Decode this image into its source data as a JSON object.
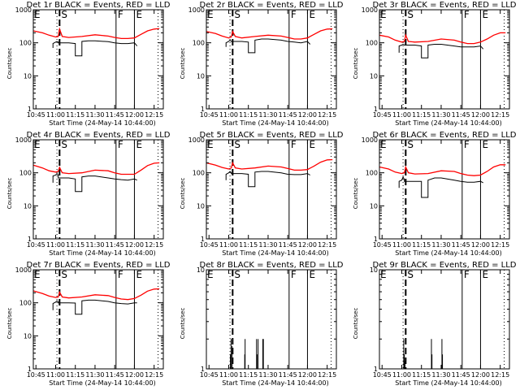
{
  "page": {
    "background": "#ffffff"
  },
  "chart_data": {
    "type": "line",
    "layout": "3x3 grid of panels",
    "colors": {
      "events": "#000000",
      "lld": "#ff0000",
      "axes": "#000000"
    },
    "shared": {
      "xlabel": "Start Time (24-May-14 10:44:00)",
      "ylabel": "Counts/sec",
      "x_unit": "minutes since 00:00",
      "xlim": [
        643,
        742
      ],
      "x_ticks": [
        {
          "value": 645,
          "label": "10:45"
        },
        {
          "value": 660,
          "label": "11:00"
        },
        {
          "value": 675,
          "label": "11:15"
        },
        {
          "value": 690,
          "label": "11:30"
        },
        {
          "value": 705,
          "label": "11:45"
        },
        {
          "value": 720,
          "label": "12:00"
        },
        {
          "value": 735,
          "label": "12:15"
        }
      ],
      "yscale": "log",
      "legend": "in title: BLACK = Events, RED = LLD",
      "marker_lines": [
        {
          "x": 661,
          "style": "dotted"
        },
        {
          "x": 663,
          "style": "dashed",
          "label": "S"
        },
        {
          "x": 706,
          "style": "solid",
          "label": "F"
        },
        {
          "x": 720,
          "style": "solid",
          "label": "E"
        },
        {
          "x": 738,
          "style": "dotted"
        }
      ],
      "left_marker_label": "E"
    },
    "panels": [
      {
        "title": "Det 1r BLACK = Events, RED = LLD",
        "ylim": [
          1,
          1000
        ],
        "y_ticks": [
          {
            "value": 1,
            "label": "1"
          },
          {
            "value": 10,
            "label": "10"
          },
          {
            "value": 100,
            "label": "100"
          },
          {
            "value": 1000,
            "label": "1000"
          }
        ],
        "lld": {
          "x": [
            643,
            650,
            655,
            660,
            662,
            663,
            665,
            670,
            680,
            690,
            700,
            705,
            710,
            715,
            720,
            725,
            730,
            735,
            739
          ],
          "y": [
            230,
            200,
            170,
            150,
            155,
            260,
            155,
            145,
            155,
            175,
            160,
            145,
            135,
            135,
            140,
            180,
            230,
            260,
            270
          ]
        },
        "events": {
          "x": [
            658,
            658,
            660,
            661,
            662,
            662,
            665,
            670,
            675,
            675,
            680,
            680,
            685,
            690,
            700,
            705,
            710,
            715,
            720,
            722
          ],
          "y": [
            70,
            95,
            105,
            110,
            105,
            100,
            100,
            100,
            95,
            40,
            40,
            110,
            115,
            115,
            108,
            100,
            95,
            95,
            100,
            80
          ]
        }
      },
      {
        "title": "Det 2r BLACK = Events, RED = LLD",
        "ylim": [
          1,
          1000
        ],
        "y_ticks": [
          {
            "value": 1,
            "label": "1"
          },
          {
            "value": 10,
            "label": "10"
          },
          {
            "value": 100,
            "label": "100"
          },
          {
            "value": 1000,
            "label": "1000"
          }
        ],
        "lld": {
          "x": [
            643,
            650,
            655,
            660,
            662,
            663,
            665,
            670,
            680,
            690,
            700,
            705,
            710,
            715,
            720,
            725,
            730,
            735,
            739
          ],
          "y": [
            220,
            190,
            160,
            140,
            150,
            220,
            155,
            140,
            155,
            170,
            160,
            145,
            130,
            130,
            140,
            180,
            230,
            260,
            265
          ]
        },
        "events": {
          "x": [
            658,
            658,
            660,
            661,
            662,
            662,
            665,
            670,
            675,
            675,
            680,
            680,
            685,
            690,
            700,
            705,
            710,
            715,
            720,
            722
          ],
          "y": [
            75,
            100,
            110,
            120,
            110,
            110,
            110,
            110,
            105,
            50,
            50,
            120,
            130,
            130,
            120,
            110,
            105,
            100,
            110,
            90
          ]
        }
      },
      {
        "title": "Det 3r BLACK = Events, RED = LLD",
        "ylim": [
          1,
          1000
        ],
        "y_ticks": [
          {
            "value": 1,
            "label": "1"
          },
          {
            "value": 10,
            "label": "10"
          },
          {
            "value": 100,
            "label": "100"
          },
          {
            "value": 1000,
            "label": "1000"
          }
        ],
        "lld": {
          "x": [
            643,
            650,
            655,
            660,
            662,
            663,
            665,
            670,
            680,
            690,
            700,
            705,
            710,
            715,
            720,
            725,
            730,
            735,
            739
          ],
          "y": [
            170,
            150,
            120,
            105,
            110,
            170,
            110,
            105,
            110,
            130,
            120,
            105,
            95,
            95,
            105,
            130,
            170,
            200,
            200
          ]
        },
        "events": {
          "x": [
            658,
            658,
            660,
            661,
            662,
            662,
            665,
            670,
            675,
            675,
            680,
            680,
            685,
            690,
            700,
            705,
            710,
            715,
            720,
            722
          ],
          "y": [
            50,
            80,
            85,
            90,
            85,
            85,
            85,
            85,
            80,
            35,
            35,
            85,
            90,
            90,
            80,
            75,
            75,
            75,
            80,
            65
          ]
        }
      },
      {
        "title": "Det 4r BLACK = Events, RED = LLD",
        "ylim": [
          1,
          1000
        ],
        "y_ticks": [
          {
            "value": 1,
            "label": "1"
          },
          {
            "value": 10,
            "label": "10"
          },
          {
            "value": 100,
            "label": "100"
          },
          {
            "value": 1000,
            "label": "1000"
          }
        ],
        "lld": {
          "x": [
            643,
            650,
            655,
            660,
            662,
            663,
            665,
            670,
            680,
            690,
            700,
            705,
            710,
            715,
            720,
            725,
            730,
            735,
            739
          ],
          "y": [
            170,
            140,
            115,
            105,
            110,
            145,
            100,
            95,
            100,
            120,
            115,
            100,
            90,
            90,
            90,
            120,
            165,
            195,
            200
          ]
        },
        "events": {
          "x": [
            658,
            658,
            660,
            661,
            662,
            662,
            665,
            670,
            675,
            675,
            680,
            680,
            685,
            690,
            700,
            705,
            710,
            715,
            720,
            722
          ],
          "y": [
            50,
            80,
            85,
            95,
            85,
            70,
            70,
            70,
            65,
            27,
            27,
            75,
            80,
            80,
            70,
            65,
            62,
            60,
            65,
            60
          ]
        }
      },
      {
        "title": "Det 5r BLACK = Events, RED = LLD",
        "ylim": [
          1,
          1000
        ],
        "y_ticks": [
          {
            "value": 1,
            "label": "1"
          },
          {
            "value": 10,
            "label": "10"
          },
          {
            "value": 100,
            "label": "100"
          },
          {
            "value": 1000,
            "label": "1000"
          }
        ],
        "lld": {
          "x": [
            643,
            650,
            655,
            660,
            662,
            663,
            665,
            670,
            680,
            690,
            700,
            705,
            710,
            715,
            720,
            725,
            730,
            735,
            739
          ],
          "y": [
            200,
            170,
            145,
            130,
            140,
            200,
            140,
            130,
            140,
            160,
            150,
            135,
            120,
            120,
            125,
            160,
            210,
            245,
            250
          ]
        },
        "events": {
          "x": [
            658,
            658,
            660,
            661,
            662,
            662,
            665,
            670,
            675,
            675,
            680,
            680,
            685,
            690,
            700,
            705,
            710,
            715,
            720,
            722
          ],
          "y": [
            60,
            90,
            100,
            110,
            100,
            95,
            95,
            95,
            90,
            38,
            38,
            105,
            110,
            110,
            100,
            90,
            88,
            88,
            95,
            85
          ]
        }
      },
      {
        "title": "Det 6r BLACK = Events, RED = LLD",
        "ylim": [
          1,
          1000
        ],
        "y_ticks": [
          {
            "value": 1,
            "label": "1"
          },
          {
            "value": 10,
            "label": "10"
          },
          {
            "value": 100,
            "label": "100"
          },
          {
            "value": 1000,
            "label": "1000"
          }
        ],
        "lld": {
          "x": [
            643,
            650,
            655,
            660,
            662,
            663,
            665,
            670,
            680,
            690,
            700,
            705,
            710,
            715,
            720,
            725,
            730,
            735,
            739
          ],
          "y": [
            150,
            130,
            105,
            95,
            100,
            150,
            100,
            92,
            95,
            115,
            110,
            95,
            85,
            82,
            85,
            110,
            150,
            175,
            175
          ]
        },
        "events": {
          "x": [
            658,
            658,
            660,
            661,
            662,
            662,
            665,
            670,
            675,
            675,
            680,
            680,
            685,
            690,
            700,
            705,
            710,
            715,
            720,
            722
          ],
          "y": [
            35,
            55,
            60,
            75,
            62,
            55,
            55,
            55,
            55,
            18,
            18,
            60,
            70,
            70,
            60,
            55,
            52,
            52,
            55,
            50
          ]
        }
      },
      {
        "title": "Det 7r BLACK = Events, RED = LLD",
        "ylim": [
          1,
          1000
        ],
        "y_ticks": [
          {
            "value": 1,
            "label": "1"
          },
          {
            "value": 10,
            "label": "10"
          },
          {
            "value": 100,
            "label": "100"
          },
          {
            "value": 1000,
            "label": "1000"
          }
        ],
        "lld": {
          "x": [
            643,
            650,
            655,
            660,
            662,
            663,
            665,
            670,
            680,
            690,
            700,
            705,
            710,
            715,
            720,
            725,
            730,
            735,
            739
          ],
          "y": [
            230,
            190,
            160,
            145,
            150,
            210,
            150,
            140,
            150,
            175,
            165,
            145,
            130,
            125,
            135,
            170,
            225,
            260,
            265
          ]
        },
        "events": {
          "x": [
            658,
            658,
            660,
            661,
            662,
            662,
            665,
            670,
            675,
            675,
            680,
            680,
            685,
            690,
            700,
            705,
            710,
            715,
            720,
            722
          ],
          "y": [
            60,
            95,
            105,
            115,
            105,
            100,
            100,
            100,
            98,
            45,
            45,
            115,
            120,
            120,
            110,
            100,
            95,
            92,
            100,
            100
          ]
        }
      },
      {
        "title": "Det 8r BLACK = Events, RED = LLD",
        "ylim": [
          1,
          10
        ],
        "y_ticks": [
          {
            "value": 1,
            "label": "1"
          },
          {
            "value": 10,
            "label": "10"
          }
        ],
        "spikes": [
          {
            "x": 661.3,
            "y": 1.4
          },
          {
            "x": 661.8,
            "y": 2
          },
          {
            "x": 662.6,
            "y": 1.7
          },
          {
            "x": 672.5,
            "y": 2
          },
          {
            "x": 672.2,
            "y": 1.4
          },
          {
            "x": 681.2,
            "y": 2
          },
          {
            "x": 681.6,
            "y": 1.4
          },
          {
            "x": 682.4,
            "y": 2
          },
          {
            "x": 686.0,
            "y": 2
          },
          {
            "x": 686.4,
            "y": 2
          }
        ]
      },
      {
        "title": "Det 9r BLACK = Events, RED = LLD",
        "ylim": [
          1,
          10
        ],
        "y_ticks": [
          {
            "value": 1,
            "label": "1"
          },
          {
            "value": 10,
            "label": "10"
          }
        ],
        "spikes": [
          {
            "x": 661.5,
            "y": 2
          },
          {
            "x": 662.0,
            "y": 1.4
          },
          {
            "x": 662.5,
            "y": 1.2
          },
          {
            "x": 682.6,
            "y": 2
          },
          {
            "x": 683.0,
            "y": 1.4
          },
          {
            "x": 690.6,
            "y": 2
          },
          {
            "x": 691.0,
            "y": 1.4
          }
        ]
      }
    ]
  }
}
